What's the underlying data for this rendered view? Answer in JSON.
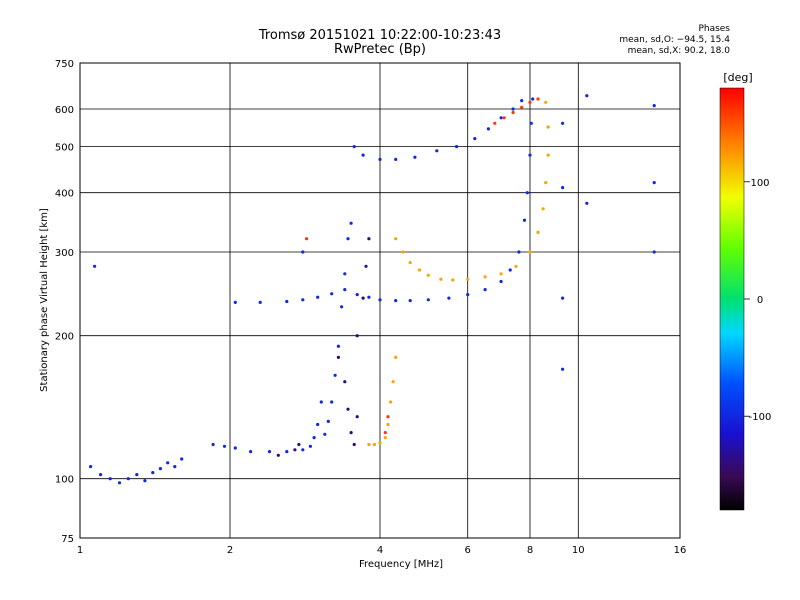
{
  "chart_data": {
    "type": "scatter",
    "title": "Tromsø 20151021 10:22:00-10:23:43",
    "subtitle": "RwPretec (Bp)",
    "xlabel": "Frequency [MHz]",
    "ylabel": "Stationary phase Virtual Height [km]",
    "x_scale": "log",
    "y_scale": "log",
    "xlim": [
      1,
      16
    ],
    "ylim": [
      75,
      750
    ],
    "x_ticks": [
      "1",
      "2",
      "4",
      "6",
      "8",
      "10",
      "16"
    ],
    "y_ticks": [
      "75",
      "100",
      "200",
      "300",
      "400",
      "500",
      "600",
      "750"
    ],
    "grid": true,
    "phases": {
      "title": "Phases",
      "o_line": "mean, sd,O: −94.5, 15.4",
      "x_line": "mean, sd,X:  90.2, 18.0"
    },
    "colorbar": {
      "label": "[deg]",
      "range": [
        -180,
        180
      ],
      "ticks": [
        "100",
        "0",
        "-100"
      ]
    },
    "series": [
      {
        "color_value": -100,
        "points": [
          [
            1.05,
            106
          ],
          [
            1.1,
            102
          ],
          [
            1.15,
            100
          ],
          [
            1.2,
            98
          ],
          [
            1.25,
            100
          ],
          [
            1.3,
            102
          ],
          [
            1.35,
            99
          ],
          [
            1.4,
            103
          ],
          [
            1.45,
            105
          ],
          [
            1.5,
            108
          ],
          [
            1.55,
            106
          ],
          [
            1.6,
            110
          ],
          [
            1.85,
            118
          ],
          [
            1.95,
            117
          ],
          [
            2.05,
            116
          ],
          [
            2.2,
            114
          ],
          [
            2.4,
            114
          ],
          [
            2.6,
            114
          ],
          [
            2.8,
            115
          ],
          [
            2.9,
            117
          ],
          [
            2.95,
            122
          ],
          [
            3.0,
            130
          ],
          [
            3.05,
            145
          ],
          [
            3.1,
            124
          ],
          [
            3.15,
            132
          ],
          [
            3.2,
            145
          ],
          [
            3.25,
            165
          ],
          [
            3.3,
            190
          ],
          [
            3.35,
            230
          ],
          [
            3.4,
            270
          ],
          [
            3.45,
            320
          ],
          [
            3.5,
            345
          ],
          [
            2.05,
            235
          ],
          [
            2.3,
            235
          ],
          [
            2.6,
            236
          ],
          [
            2.8,
            238
          ],
          [
            3.0,
            241
          ],
          [
            3.2,
            245
          ],
          [
            3.4,
            250
          ],
          [
            3.6,
            244
          ],
          [
            3.8,
            241
          ],
          [
            4.0,
            238
          ],
          [
            4.3,
            237
          ],
          [
            4.6,
            237
          ],
          [
            5.0,
            238
          ],
          [
            5.5,
            240
          ],
          [
            6.0,
            244
          ],
          [
            6.5,
            250
          ],
          [
            7.0,
            260
          ],
          [
            7.3,
            275
          ],
          [
            7.6,
            300
          ],
          [
            7.8,
            350
          ],
          [
            7.9,
            400
          ],
          [
            8.0,
            480
          ],
          [
            8.05,
            560
          ],
          [
            8.1,
            630
          ],
          [
            3.55,
            500
          ],
          [
            3.7,
            480
          ],
          [
            4.0,
            470
          ],
          [
            4.3,
            470
          ],
          [
            4.7,
            475
          ],
          [
            5.2,
            490
          ],
          [
            5.7,
            500
          ],
          [
            6.2,
            520
          ],
          [
            6.6,
            545
          ],
          [
            7.0,
            575
          ],
          [
            7.4,
            600
          ],
          [
            7.7,
            625
          ],
          [
            9.3,
            560
          ],
          [
            9.3,
            410
          ],
          [
            9.3,
            240
          ],
          [
            9.3,
            170
          ],
          [
            10.4,
            640
          ],
          [
            10.4,
            380
          ],
          [
            14.2,
            610
          ],
          [
            14.2,
            420
          ],
          [
            14.2,
            300
          ],
          [
            1.07,
            280
          ],
          [
            2.8,
            300
          ]
        ]
      },
      {
        "color_value": -140,
        "points": [
          [
            3.3,
            180
          ],
          [
            3.4,
            160
          ],
          [
            3.45,
            140
          ],
          [
            3.5,
            125
          ],
          [
            3.55,
            118
          ],
          [
            3.6,
            135
          ],
          [
            3.6,
            200
          ],
          [
            3.7,
            240
          ],
          [
            3.75,
            280
          ],
          [
            3.8,
            320
          ],
          [
            2.5,
            112
          ],
          [
            2.7,
            115
          ],
          [
            2.75,
            118
          ]
        ]
      },
      {
        "color_value": 120,
        "points": [
          [
            4.3,
            320
          ],
          [
            4.45,
            300
          ],
          [
            4.6,
            285
          ],
          [
            4.8,
            275
          ],
          [
            5.0,
            268
          ],
          [
            5.3,
            263
          ],
          [
            5.6,
            262
          ],
          [
            6.0,
            263
          ],
          [
            6.5,
            266
          ],
          [
            7.0,
            270
          ],
          [
            7.5,
            280
          ],
          [
            8.0,
            300
          ],
          [
            8.3,
            330
          ],
          [
            8.5,
            370
          ],
          [
            8.6,
            420
          ],
          [
            8.7,
            480
          ],
          [
            8.7,
            550
          ],
          [
            8.6,
            620
          ],
          [
            3.8,
            118
          ],
          [
            3.9,
            118
          ],
          [
            4.0,
            119
          ],
          [
            4.1,
            122
          ],
          [
            4.15,
            130
          ],
          [
            4.2,
            145
          ],
          [
            4.25,
            160
          ],
          [
            4.3,
            180
          ]
        ]
      },
      {
        "color_value": 160,
        "points": [
          [
            6.8,
            560
          ],
          [
            7.1,
            575
          ],
          [
            7.4,
            590
          ],
          [
            7.7,
            605
          ],
          [
            8.0,
            620
          ],
          [
            8.3,
            630
          ],
          [
            4.1,
            125
          ],
          [
            4.15,
            135
          ],
          [
            2.85,
            320
          ]
        ]
      }
    ]
  }
}
